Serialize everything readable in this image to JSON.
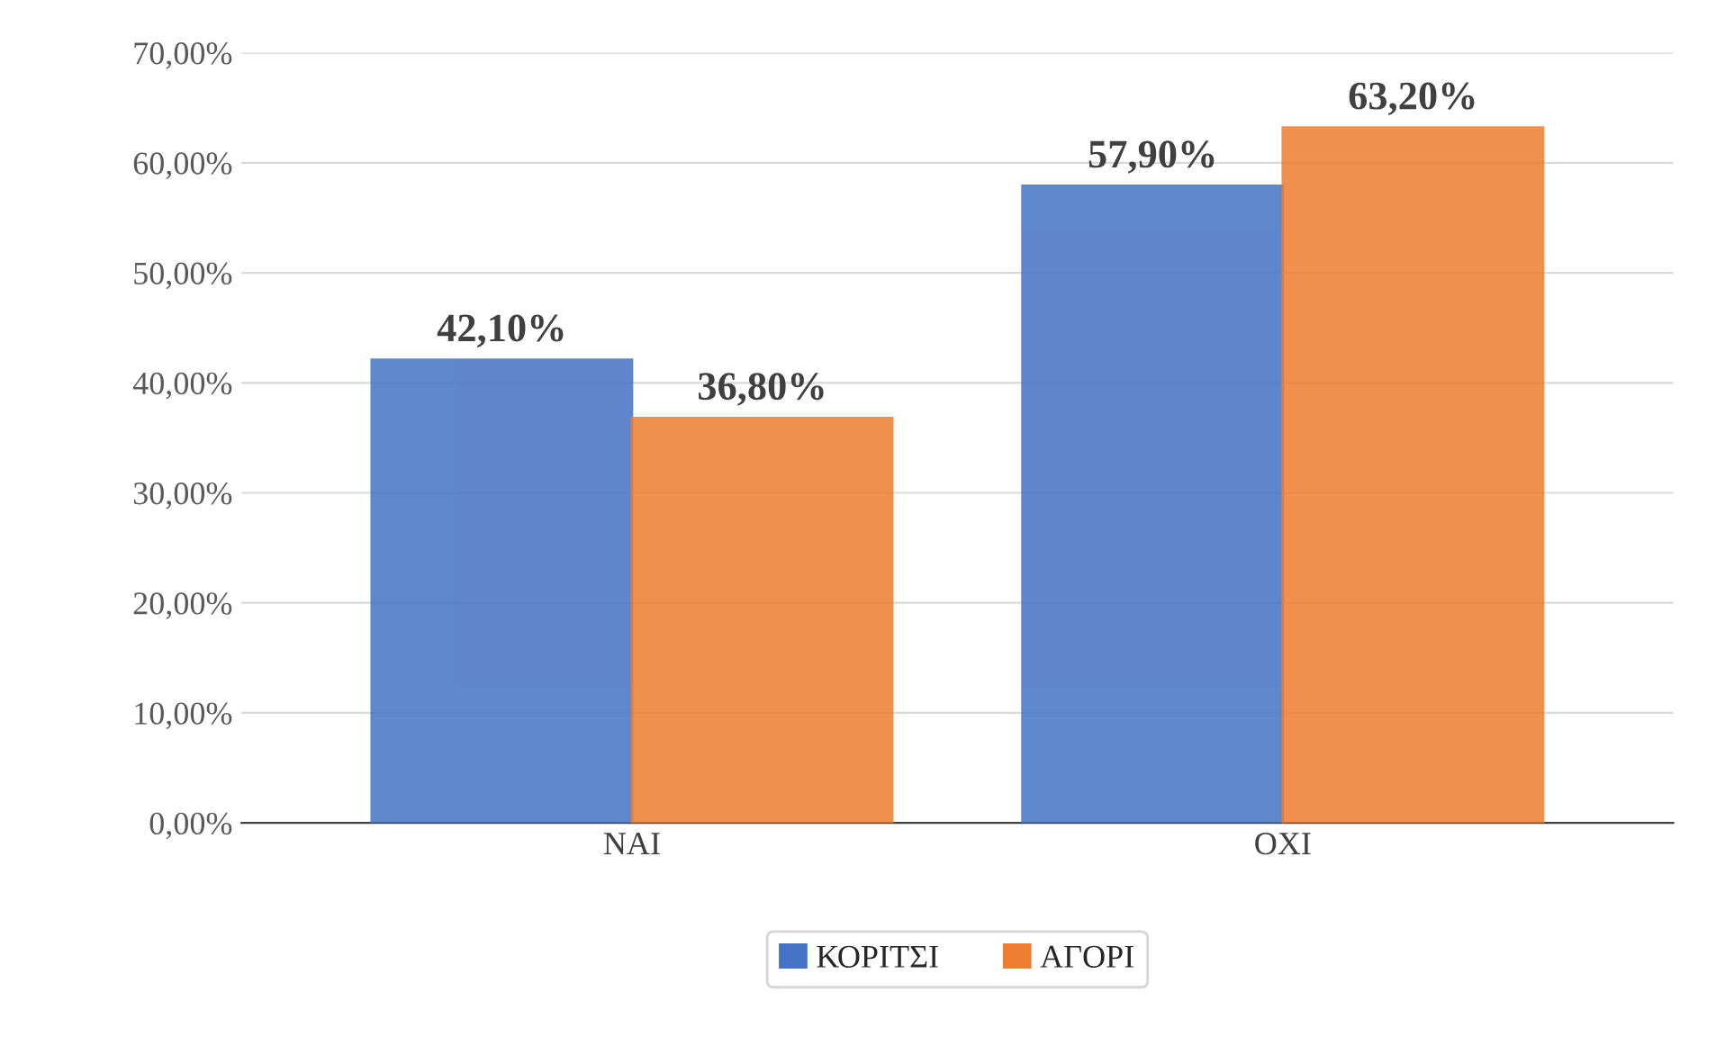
{
  "chart_data": {
    "type": "bar",
    "categories": [
      "ΝΑΙ",
      "ΟΧΙ"
    ],
    "series": [
      {
        "name": "ΚΟΡΙΤΣΙ",
        "color": "#4472c4",
        "values": [
          42.1,
          57.9
        ],
        "value_labels": [
          "42,10%",
          "57,90%"
        ]
      },
      {
        "name": "ΑΓΟΡΙ",
        "color": "#ed7d31",
        "values": [
          36.8,
          63.2
        ],
        "value_labels": [
          "36,80%",
          "63,20%"
        ]
      }
    ],
    "ylim": [
      0,
      70
    ],
    "yticks": [
      {
        "value": 0,
        "label": "0,00%"
      },
      {
        "value": 10,
        "label": "10,00%"
      },
      {
        "value": 20,
        "label": "20,00%"
      },
      {
        "value": 30,
        "label": "30,00%"
      },
      {
        "value": 40,
        "label": "40,00%"
      },
      {
        "value": 50,
        "label": "50,00%"
      },
      {
        "value": 60,
        "label": "60,00%"
      },
      {
        "value": 70,
        "label": "70,00%"
      }
    ],
    "grid": "y",
    "legend": "bottom"
  }
}
